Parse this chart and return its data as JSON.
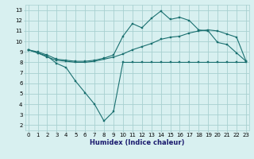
{
  "xlabel": "Humidex (Indice chaleur)",
  "bg_color": "#d8f0f0",
  "grid_color": "#a8d0d0",
  "line_color": "#1a7070",
  "x_ticks": [
    0,
    1,
    2,
    3,
    4,
    5,
    6,
    7,
    8,
    9,
    10,
    11,
    12,
    13,
    14,
    15,
    16,
    17,
    18,
    19,
    20,
    21,
    22,
    23
  ],
  "y_ticks": [
    2,
    3,
    4,
    5,
    6,
    7,
    8,
    9,
    10,
    11,
    12,
    13
  ],
  "xlim": [
    -0.3,
    23.3
  ],
  "ylim": [
    1.5,
    13.5
  ],
  "line1_x": [
    0,
    1,
    2,
    3,
    4,
    5,
    6,
    7,
    8,
    9,
    10,
    11,
    12,
    13,
    14,
    15,
    16,
    17,
    18,
    19,
    20,
    21,
    22,
    23
  ],
  "line1_y": [
    9.2,
    8.9,
    8.6,
    7.9,
    7.5,
    6.2,
    5.1,
    4.0,
    2.4,
    3.3,
    8.0,
    8.0,
    8.0,
    8.0,
    8.0,
    8.0,
    8.0,
    8.0,
    8.0,
    8.0,
    8.0,
    8.0,
    8.0,
    8.0
  ],
  "line2_x": [
    0,
    1,
    2,
    3,
    4,
    5,
    6,
    7,
    8,
    9,
    10,
    11,
    12,
    13,
    14,
    15,
    16,
    17,
    18,
    19,
    20,
    21,
    22,
    23
  ],
  "line2_y": [
    9.2,
    8.9,
    8.5,
    8.2,
    8.1,
    8.0,
    8.0,
    8.1,
    8.3,
    8.5,
    8.8,
    9.2,
    9.5,
    9.8,
    10.2,
    10.4,
    10.5,
    10.8,
    11.0,
    11.1,
    11.0,
    10.7,
    10.4,
    8.1
  ],
  "line3_x": [
    0,
    1,
    2,
    3,
    4,
    5,
    6,
    7,
    8,
    9,
    10,
    11,
    12,
    13,
    14,
    15,
    16,
    17,
    18,
    19,
    20,
    21,
    22,
    23
  ],
  "line3_y": [
    9.2,
    9.0,
    8.7,
    8.3,
    8.2,
    8.1,
    8.1,
    8.2,
    8.4,
    8.7,
    10.5,
    11.7,
    11.3,
    12.2,
    12.9,
    12.1,
    12.3,
    12.0,
    11.1,
    11.0,
    9.9,
    9.7,
    8.9,
    8.1
  ]
}
